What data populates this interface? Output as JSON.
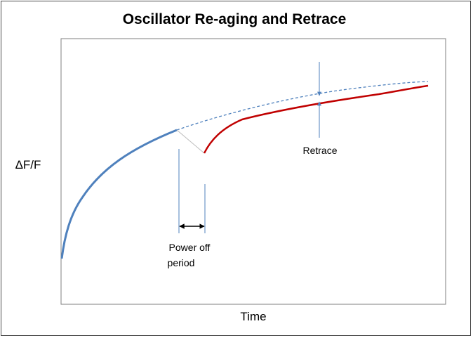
{
  "title": "Oscillator Re-aging and Retrace",
  "axes": {
    "x_label": "Time",
    "y_label": "ΔF/F"
  },
  "annotations": {
    "retrace_label": "Retrace",
    "power_off_label_line1": "Power off",
    "power_off_label_line2": "period"
  },
  "colors": {
    "initial_aging_curve": "#4f81bd",
    "re_aging_curve": "#c00000",
    "projected_curve": "#4f81bd",
    "marker_lines": "#4f81bd",
    "connector": "#bfbfbf",
    "period_arrow": "#000000"
  },
  "icons": {
    "retrace_arrows": "arrow-pair-vertical",
    "period_arrow": "double-headed-horizontal-arrow"
  }
}
